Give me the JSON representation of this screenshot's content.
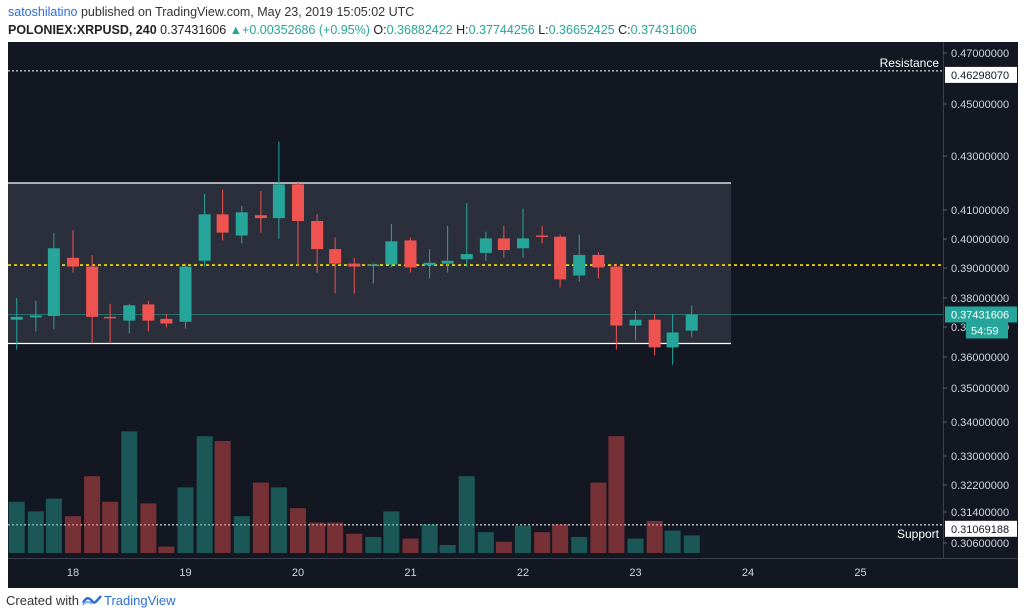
{
  "header": {
    "user": "satoshilatino",
    "published": "published on TradingView.com, May 23, 2019 15:05:02 UTC",
    "symbol": "POLONIEX:XRPUSD, 240",
    "last": "0.37431606",
    "change": "+0.00352686 (+0.95%)",
    "o_label": "O:",
    "o": "0.36882422",
    "h_label": "H:",
    "h": "0.37744256",
    "l_label": "L:",
    "l": "0.36652425",
    "c_label": "C:",
    "c": "0.37431606"
  },
  "footer": {
    "created": "Created with",
    "brand": "TradingView"
  },
  "colors": {
    "up": "#26a69a",
    "down": "#ef5350",
    "bg": "#131722",
    "support_line": "#ffffff",
    "mid_line": "#ffe500"
  },
  "chart_data": {
    "type": "candlestick",
    "symbol": "POLONIEX:XRPUSD",
    "interval": "240",
    "x_ticks": [
      "18",
      "19",
      "20",
      "21",
      "22",
      "23",
      "24",
      "25"
    ],
    "y_ticks": [
      "0.47000000",
      "0.45000000",
      "0.43000000",
      "0.41000000",
      "0.40000000",
      "0.39000000",
      "0.38000000",
      "0.37000000",
      "0.36000000",
      "0.35000000",
      "0.34000000",
      "0.33000000",
      "0.32200000",
      "0.31400000",
      "0.30600000"
    ],
    "ylim": [
      0.306,
      0.47
    ],
    "price_label": "0.37431606",
    "countdown": "54:59",
    "resistance": {
      "label": "Resistance",
      "value": "0.46298070"
    },
    "support": {
      "label": "Support",
      "value": "0.31069188"
    },
    "range_box": {
      "top": 0.42,
      "bottom": 0.3645
    },
    "midline": 0.391,
    "candles": [
      {
        "t": 17.5,
        "o": 0.3725,
        "h": 0.38,
        "l": 0.3625,
        "c": 0.3735,
        "v": 3.2
      },
      {
        "t": 17.67,
        "o": 0.3733,
        "h": 0.379,
        "l": 0.3685,
        "c": 0.374,
        "v": 2.6
      },
      {
        "t": 17.83,
        "o": 0.3738,
        "h": 0.402,
        "l": 0.3692,
        "c": 0.3968,
        "v": 3.4
      },
      {
        "t": 18.0,
        "o": 0.3935,
        "h": 0.403,
        "l": 0.3885,
        "c": 0.3905,
        "v": 2.3
      },
      {
        "t": 18.17,
        "o": 0.3905,
        "h": 0.3945,
        "l": 0.3645,
        "c": 0.3735,
        "v": 4.8
      },
      {
        "t": 18.33,
        "o": 0.3735,
        "h": 0.378,
        "l": 0.3645,
        "c": 0.3732,
        "v": 3.2
      },
      {
        "t": 18.5,
        "o": 0.3722,
        "h": 0.378,
        "l": 0.3678,
        "c": 0.3775,
        "v": 7.6
      },
      {
        "t": 18.67,
        "o": 0.3778,
        "h": 0.379,
        "l": 0.3685,
        "c": 0.3722,
        "v": 3.1
      },
      {
        "t": 18.83,
        "o": 0.3728,
        "h": 0.3745,
        "l": 0.3698,
        "c": 0.3712,
        "v": 0.4
      },
      {
        "t": 19.0,
        "o": 0.3718,
        "h": 0.3915,
        "l": 0.3695,
        "c": 0.3905,
        "v": 4.1
      },
      {
        "t": 19.17,
        "o": 0.3925,
        "h": 0.416,
        "l": 0.3905,
        "c": 0.4085,
        "v": 7.3
      },
      {
        "t": 19.33,
        "o": 0.4085,
        "h": 0.4175,
        "l": 0.3995,
        "c": 0.4022,
        "v": 7.0
      },
      {
        "t": 19.5,
        "o": 0.4012,
        "h": 0.4115,
        "l": 0.3985,
        "c": 0.4092,
        "v": 2.3
      },
      {
        "t": 19.67,
        "o": 0.4082,
        "h": 0.417,
        "l": 0.4022,
        "c": 0.4072,
        "v": 4.4
      },
      {
        "t": 19.83,
        "o": 0.4072,
        "h": 0.4355,
        "l": 0.4002,
        "c": 0.4195,
        "v": 4.1
      },
      {
        "t": 20.0,
        "o": 0.4195,
        "h": 0.4205,
        "l": 0.3905,
        "c": 0.4062,
        "v": 2.8
      },
      {
        "t": 20.17,
        "o": 0.4062,
        "h": 0.4085,
        "l": 0.3885,
        "c": 0.3965,
        "v": 1.9
      },
      {
        "t": 20.33,
        "o": 0.3965,
        "h": 0.4005,
        "l": 0.3815,
        "c": 0.3915,
        "v": 1.9
      },
      {
        "t": 20.5,
        "o": 0.3915,
        "h": 0.3935,
        "l": 0.3815,
        "c": 0.3905,
        "v": 1.2
      },
      {
        "t": 20.67,
        "o": 0.3908,
        "h": 0.3915,
        "l": 0.3848,
        "c": 0.3912,
        "v": 1.0
      },
      {
        "t": 20.83,
        "o": 0.3912,
        "h": 0.4052,
        "l": 0.3902,
        "c": 0.3992,
        "v": 2.6
      },
      {
        "t": 21.0,
        "o": 0.3995,
        "h": 0.4005,
        "l": 0.3885,
        "c": 0.3902,
        "v": 0.9
      },
      {
        "t": 21.17,
        "o": 0.391,
        "h": 0.3965,
        "l": 0.3865,
        "c": 0.3918,
        "v": 1.8
      },
      {
        "t": 21.33,
        "o": 0.3915,
        "h": 0.4045,
        "l": 0.3885,
        "c": 0.3925,
        "v": 0.5
      },
      {
        "t": 21.5,
        "o": 0.393,
        "h": 0.4125,
        "l": 0.3905,
        "c": 0.3948,
        "v": 4.8
      },
      {
        "t": 21.67,
        "o": 0.3952,
        "h": 0.4025,
        "l": 0.3925,
        "c": 0.4002,
        "v": 1.3
      },
      {
        "t": 21.83,
        "o": 0.4002,
        "h": 0.4045,
        "l": 0.3935,
        "c": 0.3962,
        "v": 0.7
      },
      {
        "t": 22.0,
        "o": 0.3968,
        "h": 0.4105,
        "l": 0.3935,
        "c": 0.4002,
        "v": 1.7
      },
      {
        "t": 22.17,
        "o": 0.4012,
        "h": 0.4045,
        "l": 0.3985,
        "c": 0.4008,
        "v": 1.3
      },
      {
        "t": 22.33,
        "o": 0.4008,
        "h": 0.4015,
        "l": 0.3835,
        "c": 0.3862,
        "v": 1.8
      },
      {
        "t": 22.5,
        "o": 0.3875,
        "h": 0.4015,
        "l": 0.3855,
        "c": 0.3945,
        "v": 1.0
      },
      {
        "t": 22.67,
        "o": 0.3945,
        "h": 0.3955,
        "l": 0.3865,
        "c": 0.3902,
        "v": 4.4
      },
      {
        "t": 22.83,
        "o": 0.3905,
        "h": 0.3915,
        "l": 0.3625,
        "c": 0.3705,
        "v": 7.3
      },
      {
        "t": 23.0,
        "o": 0.3705,
        "h": 0.3755,
        "l": 0.3655,
        "c": 0.3725,
        "v": 0.9
      },
      {
        "t": 23.17,
        "o": 0.3725,
        "h": 0.3745,
        "l": 0.3605,
        "c": 0.3632,
        "v": 2.0
      },
      {
        "t": 23.33,
        "o": 0.3632,
        "h": 0.3745,
        "l": 0.3575,
        "c": 0.3682,
        "v": 1.4
      },
      {
        "t": 23.5,
        "o": 0.3688,
        "h": 0.3774,
        "l": 0.3665,
        "c": 0.3743,
        "v": 1.1
      }
    ]
  }
}
